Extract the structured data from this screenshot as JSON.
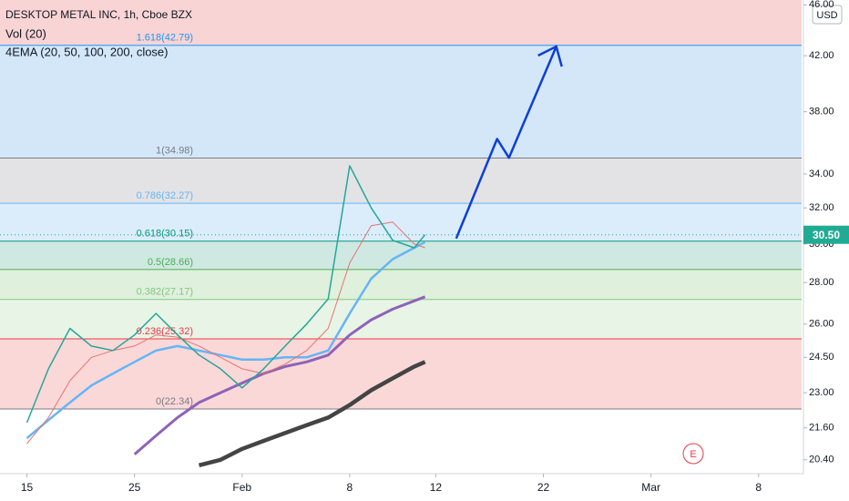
{
  "chart_data": {
    "type": "line",
    "title": "DESKTOP METAL INC, 1h, Cboe BZX",
    "indicators": [
      "Vol (20)",
      "4EMA (20, 50, 100, 200, close)"
    ],
    "currency": "USD",
    "log_scale": true,
    "ylim": [
      19.9,
      46.4
    ],
    "yticks": [
      {
        "value": 46,
        "label": "46.00"
      },
      {
        "value": 42,
        "label": "42.00"
      },
      {
        "value": 38,
        "label": "38.00"
      },
      {
        "value": 34,
        "label": "34.00"
      },
      {
        "value": 32,
        "label": "32.00"
      },
      {
        "value": 30,
        "label": "30.00"
      },
      {
        "value": 28,
        "label": "28.00"
      },
      {
        "value": 26,
        "label": "26.00"
      },
      {
        "value": 24.5,
        "label": "24.50"
      },
      {
        "value": 23,
        "label": "23.00"
      },
      {
        "value": 21.6,
        "label": "21.60"
      },
      {
        "value": 20.4,
        "label": "20.40"
      }
    ],
    "xlim": [
      -1.25,
      36
    ],
    "xticks": [
      {
        "value": 0,
        "label": "15"
      },
      {
        "value": 5,
        "label": "25"
      },
      {
        "value": 10,
        "label": "Feb"
      },
      {
        "value": 15,
        "label": "8"
      },
      {
        "value": 19,
        "label": "12"
      },
      {
        "value": 24,
        "label": "22"
      },
      {
        "value": 29,
        "label": "Mar"
      },
      {
        "value": 34,
        "label": "8"
      }
    ],
    "x": [
      0,
      1,
      2,
      3,
      4,
      5,
      6,
      7,
      8,
      9,
      10,
      11,
      12,
      13,
      14,
      15,
      16,
      17,
      18,
      18.5
    ],
    "series": [
      {
        "color": "#26a69a",
        "width": 1.5,
        "values": [
          21.8,
          24.0,
          25.8,
          25.0,
          24.8,
          25.5,
          26.5,
          25.5,
          24.6,
          24.0,
          23.2,
          24.0,
          25.0,
          26.0,
          27.2,
          34.5,
          32.0,
          30.2,
          29.8,
          30.5
        ]
      },
      {
        "color": "#e57373",
        "width": 1,
        "values": [
          21.0,
          22.0,
          23.5,
          24.5,
          24.8,
          25.0,
          25.5,
          25.4,
          25.0,
          24.5,
          24.0,
          23.8,
          24.2,
          24.8,
          25.8,
          29.0,
          31.0,
          31.2,
          30.0,
          29.8
        ]
      },
      {
        "color": "#64b5f6",
        "width": 2.5,
        "values": [
          21.2,
          21.9,
          22.6,
          23.3,
          23.8,
          24.3,
          24.8,
          25.0,
          24.8,
          24.6,
          24.4,
          24.4,
          24.5,
          24.5,
          24.8,
          26.5,
          28.2,
          29.2,
          29.8,
          30.1
        ]
      },
      {
        "color": "#8e63b8",
        "width": 3,
        "values": [
          null,
          null,
          null,
          null,
          null,
          20.6,
          21.3,
          22.0,
          22.6,
          23.0,
          23.4,
          23.8,
          24.1,
          24.3,
          24.6,
          25.5,
          26.2,
          26.7,
          27.1,
          27.3
        ]
      },
      {
        "color": "#444444",
        "width": 4.5,
        "values": [
          null,
          null,
          null,
          null,
          null,
          null,
          null,
          null,
          20.2,
          20.4,
          20.8,
          21.1,
          21.4,
          21.7,
          22.0,
          22.5,
          23.1,
          23.6,
          24.1,
          24.3
        ]
      }
    ],
    "projection": {
      "color": "#0d3fd6",
      "x": [
        19.95,
        21.85,
        22.4,
        24.6
      ],
      "values": [
        30.3,
        36.2,
        35.0,
        42.7
      ]
    },
    "fib_fill_above": "#f8d4d4",
    "fib_levels": [
      {
        "label": "1.618(42.79)",
        "value": 42.79,
        "color": "#2196f3",
        "fill": "#d3e7f9"
      },
      {
        "label": "1(34.98)",
        "value": 34.98,
        "color": "#787b86",
        "fill": "#e3e3e5"
      },
      {
        "label": "0.786(32.27)",
        "value": 32.27,
        "color": "#64b5f6",
        "fill": "#dbecfa"
      },
      {
        "label": "0.618(30.15)",
        "value": 30.15,
        "color": "#089981",
        "fill": "#cfe8e2"
      },
      {
        "label": "0.5(28.66)",
        "value": 28.66,
        "color": "#4caf50",
        "fill": "#dff0dc"
      },
      {
        "label": "0.382(27.17)",
        "value": 27.17,
        "color": "#81c784",
        "fill": "#e8f4e6"
      },
      {
        "label": "0.236(25.32)",
        "value": 25.32,
        "color": "#f23645",
        "fill": "#fbd8d8"
      },
      {
        "label": "0(22.34)",
        "value": 22.34,
        "color": "#787b86",
        "fill": null
      }
    ],
    "price_tag": {
      "value": 30.5,
      "label": "30.50",
      "color": "#22ab94"
    },
    "earnings_marker": "E"
  }
}
